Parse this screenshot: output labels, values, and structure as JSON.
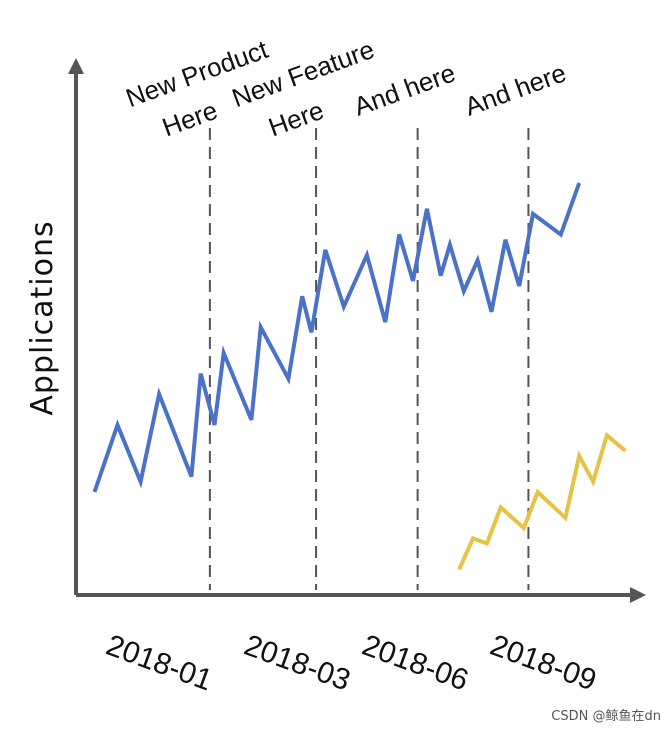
{
  "chart_data": {
    "type": "line",
    "ylabel": "Applications",
    "x_ticks": [
      "2018-01",
      "2018-03",
      "2018-06",
      "2018-09"
    ],
    "xlim": [
      0,
      12
    ],
    "ylim": [
      0,
      100
    ],
    "annotations": [
      {
        "x": 2.9,
        "lines": [
          "New Product",
          "Here"
        ]
      },
      {
        "x": 5.2,
        "lines": [
          "New Feature",
          "Here"
        ]
      },
      {
        "x": 7.4,
        "lines": [
          "And here"
        ]
      },
      {
        "x": 9.8,
        "lines": [
          "And here"
        ]
      }
    ],
    "series": [
      {
        "color": "#4a72c9",
        "points": [
          [
            0.4,
            20
          ],
          [
            0.9,
            33
          ],
          [
            1.4,
            22
          ],
          [
            1.8,
            39
          ],
          [
            2.5,
            23
          ],
          [
            2.7,
            43
          ],
          [
            3.0,
            33
          ],
          [
            3.2,
            47
          ],
          [
            3.8,
            34
          ],
          [
            4.0,
            52
          ],
          [
            4.6,
            42
          ],
          [
            4.9,
            58
          ],
          [
            5.1,
            51
          ],
          [
            5.4,
            67
          ],
          [
            5.8,
            56
          ],
          [
            6.3,
            66
          ],
          [
            6.7,
            53
          ],
          [
            7.0,
            70
          ],
          [
            7.3,
            61
          ],
          [
            7.6,
            75
          ],
          [
            7.9,
            62
          ],
          [
            8.1,
            68
          ],
          [
            8.4,
            59
          ],
          [
            8.7,
            65
          ],
          [
            9.0,
            55
          ],
          [
            9.3,
            69
          ],
          [
            9.6,
            60
          ],
          [
            9.9,
            74
          ],
          [
            10.5,
            70
          ],
          [
            10.9,
            80
          ]
        ]
      },
      {
        "color": "#e6c245",
        "points": [
          [
            8.3,
            5
          ],
          [
            8.6,
            11
          ],
          [
            8.9,
            10
          ],
          [
            9.2,
            17
          ],
          [
            9.7,
            13
          ],
          [
            10.0,
            20
          ],
          [
            10.6,
            15
          ],
          [
            10.9,
            27
          ],
          [
            11.2,
            22
          ],
          [
            11.5,
            31
          ],
          [
            11.9,
            28
          ]
        ]
      }
    ]
  },
  "watermark": "CSDN @鲸鱼在dn"
}
